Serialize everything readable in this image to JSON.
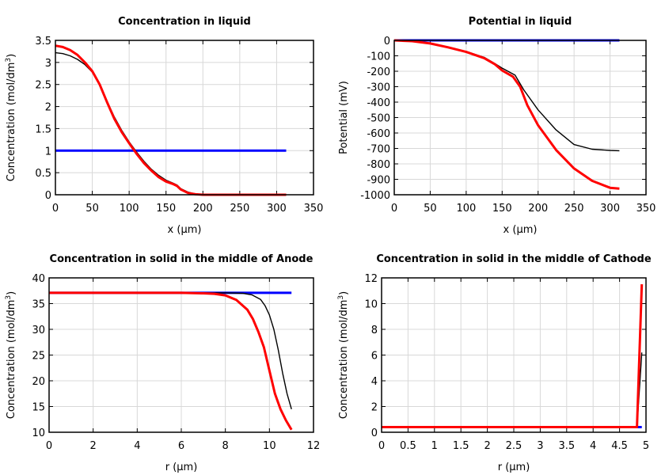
{
  "chart_data": [
    {
      "type": "line",
      "title": "Concentration in liquid",
      "xlabel": "x (µm)",
      "ylabel": "Concentration (mol/dm3)",
      "xlim": [
        0,
        350
      ],
      "ylim": [
        0,
        3.5
      ],
      "xticks": [
        "0",
        "50",
        "100",
        "150",
        "200",
        "250",
        "300",
        "350"
      ],
      "yticks": [
        "0",
        "0.5",
        "1",
        "1.5",
        "2",
        "2.5",
        "3",
        "3.5"
      ],
      "grid": true,
      "series": [
        {
          "color": "#0000ff",
          "x": [
            0,
            313
          ],
          "y": [
            1,
            1
          ]
        },
        {
          "color": "#000000",
          "x": [
            0,
            10,
            20,
            30,
            40,
            50,
            60,
            70,
            80,
            90,
            100,
            110,
            120,
            130,
            140,
            150,
            160,
            165,
            170,
            180,
            190,
            200,
            313
          ],
          "y": [
            3.22,
            3.2,
            3.15,
            3.07,
            2.95,
            2.78,
            2.5,
            2.12,
            1.76,
            1.46,
            1.2,
            0.97,
            0.76,
            0.58,
            0.44,
            0.33,
            0.26,
            0.22,
            0.14,
            0.06,
            0.015,
            0,
            0
          ]
        },
        {
          "color": "#ff0000",
          "x": [
            0,
            10,
            20,
            30,
            40,
            50,
            60,
            70,
            80,
            90,
            100,
            110,
            120,
            130,
            140,
            150,
            160,
            165,
            170,
            180,
            190,
            200,
            313
          ],
          "y": [
            3.38,
            3.35,
            3.28,
            3.17,
            3.0,
            2.8,
            2.5,
            2.1,
            1.72,
            1.42,
            1.17,
            0.93,
            0.72,
            0.55,
            0.4,
            0.3,
            0.24,
            0.2,
            0.12,
            0.04,
            0.01,
            0,
            0
          ]
        }
      ]
    },
    {
      "type": "line",
      "title": "Potential in liquid",
      "xlabel": "x (µm)",
      "ylabel": "Potential (mV)",
      "xlim": [
        0,
        350
      ],
      "ylim": [
        -1000,
        0
      ],
      "xticks": [
        "0",
        "50",
        "100",
        "150",
        "200",
        "250",
        "300",
        "350"
      ],
      "yticks": [
        "-1000",
        "-900",
        "-800",
        "-700",
        "-600",
        "-500",
        "-400",
        "-300",
        "-200",
        "-100",
        "0"
      ],
      "grid": true,
      "series": [
        {
          "color": "#0000ff",
          "x": [
            0,
            313
          ],
          "y": [
            0,
            0
          ]
        },
        {
          "color": "#000000",
          "x": [
            0,
            25,
            50,
            75,
            100,
            125,
            140,
            150,
            168,
            180,
            200,
            225,
            250,
            275,
            300,
            313
          ],
          "y": [
            0,
            -5,
            -20,
            -45,
            -72,
            -110,
            -150,
            -180,
            -225,
            -320,
            -450,
            -580,
            -675,
            -705,
            -713,
            -715
          ]
        },
        {
          "color": "#ff0000",
          "x": [
            0,
            25,
            50,
            75,
            100,
            125,
            140,
            150,
            165,
            175,
            185,
            200,
            225,
            250,
            275,
            300,
            313
          ],
          "y": [
            0,
            -5,
            -20,
            -45,
            -75,
            -115,
            -155,
            -195,
            -235,
            -300,
            -420,
            -550,
            -710,
            -830,
            -910,
            -955,
            -960
          ]
        }
      ]
    },
    {
      "type": "line",
      "title": "Concentration in solid in the middle of Anode",
      "xlabel": "r (µm)",
      "ylabel": "Concentration (mol/dm3)",
      "xlim": [
        0,
        12
      ],
      "ylim": [
        10,
        40
      ],
      "xticks": [
        "0",
        "2",
        "4",
        "6",
        "8",
        "10",
        "12"
      ],
      "yticks": [
        "10",
        "15",
        "20",
        "25",
        "30",
        "35",
        "40"
      ],
      "grid": true,
      "series": [
        {
          "color": "#0000ff",
          "x": [
            0,
            11
          ],
          "y": [
            37.1,
            37.1
          ]
        },
        {
          "color": "#000000",
          "x": [
            0,
            8,
            8.8,
            9.2,
            9.6,
            9.8,
            10,
            10.2,
            10.4,
            10.6,
            10.8,
            11
          ],
          "y": [
            37.1,
            37.1,
            37.0,
            36.7,
            35.8,
            34.6,
            32.8,
            30,
            26,
            21.5,
            17.5,
            14.5
          ]
        },
        {
          "color": "#ff0000",
          "x": [
            0,
            6,
            7,
            7.5,
            8,
            8.5,
            9,
            9.25,
            9.5,
            9.75,
            10,
            10.25,
            10.5,
            10.75,
            11
          ],
          "y": [
            37.1,
            37.1,
            37.0,
            36.9,
            36.6,
            35.7,
            33.8,
            32,
            29.5,
            26.5,
            22,
            17.5,
            14.5,
            12.3,
            10.5
          ]
        }
      ]
    },
    {
      "type": "line",
      "title": "Concentration in solid in the middle of Cathode",
      "xlabel": "r (µm)",
      "ylabel": "Concentration (mol/dm3)",
      "xlim": [
        0,
        5
      ],
      "ylim": [
        0,
        12
      ],
      "xticks": [
        "0",
        "0.5",
        "1",
        "1.5",
        "2",
        "2.5",
        "3",
        "3.5",
        "4",
        "4.5",
        "5"
      ],
      "yticks": [
        "0",
        "2",
        "4",
        "6",
        "8",
        "10",
        "12"
      ],
      "grid": true,
      "series": [
        {
          "color": "#0000ff",
          "x": [
            0,
            4.92
          ],
          "y": [
            0.4,
            0.4
          ]
        },
        {
          "color": "#000000",
          "x": [
            0,
            4.83,
            4.92
          ],
          "y": [
            0.4,
            0.4,
            6.2
          ]
        },
        {
          "color": "#ff0000",
          "x": [
            0,
            4.83,
            4.92
          ],
          "y": [
            0.4,
            0.4,
            11.5
          ]
        }
      ]
    }
  ]
}
